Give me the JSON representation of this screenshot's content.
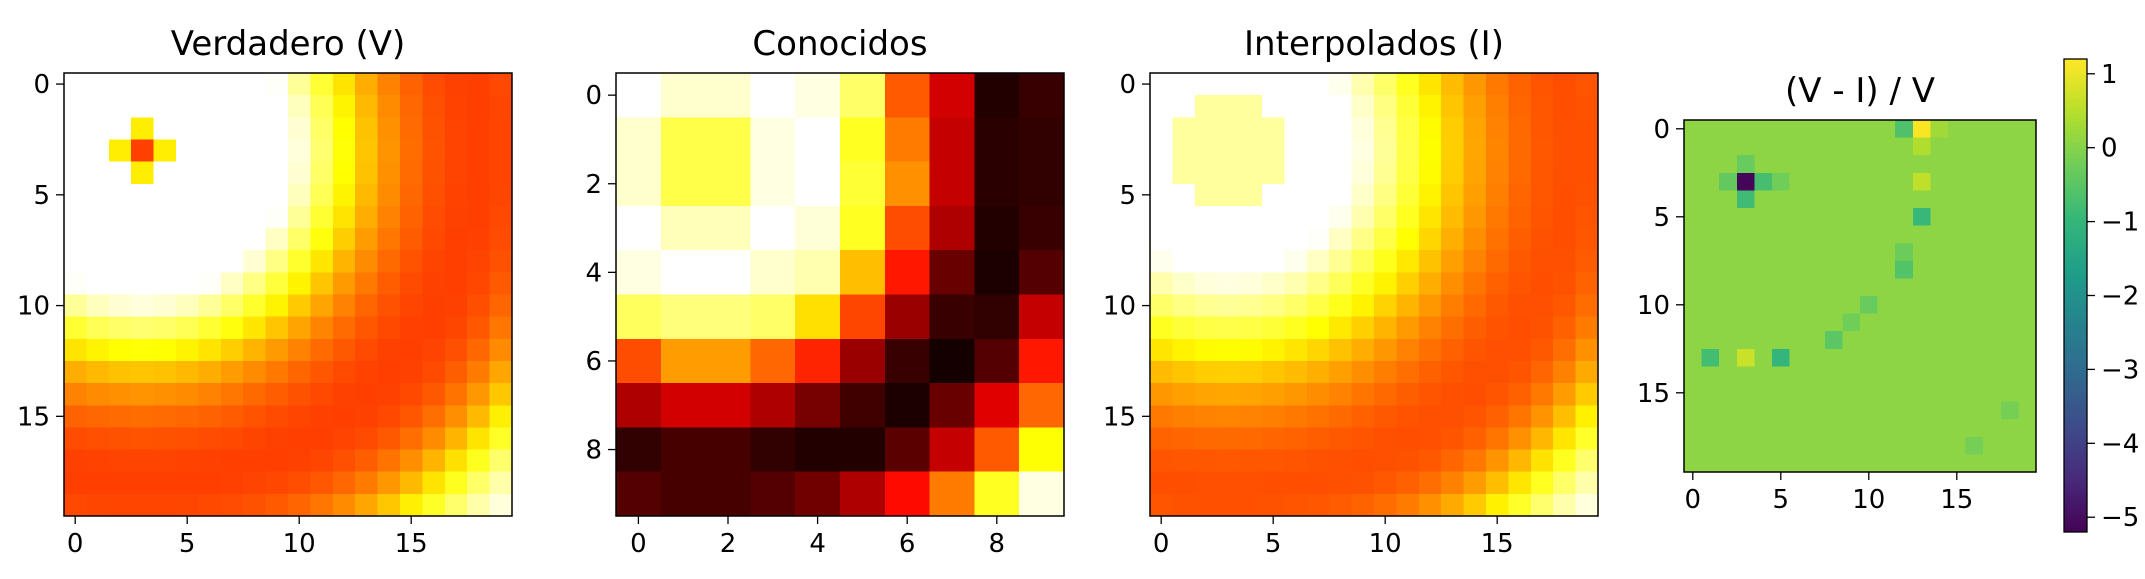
{
  "chart_data": [
    {
      "type": "heatmap",
      "title": "Verdadero (V)",
      "colormap": "hot",
      "rows": 20,
      "cols": 20,
      "value_range": [
        0,
        1
      ],
      "description_of_field": "radial bump peaking near row 3, col 3 with a ring that reaches the bottom-right corner",
      "xticks": [
        0,
        5,
        10,
        15
      ],
      "yticks": [
        0,
        5,
        10,
        15
      ],
      "peak": {
        "row": 3,
        "col": 3
      }
    },
    {
      "type": "heatmap",
      "title": "Conocidos",
      "colormap": "hot",
      "rows": 10,
      "cols": 10,
      "value_range": [
        0,
        1
      ],
      "values": [
        [
          1.0,
          0.95,
          0.95,
          1.0,
          0.97,
          0.85,
          0.5,
          0.3,
          0.05,
          0.08
        ],
        [
          0.95,
          0.82,
          0.82,
          0.97,
          1.0,
          0.78,
          0.55,
          0.28,
          0.06,
          0.07
        ],
        [
          0.95,
          0.82,
          0.82,
          0.97,
          1.0,
          0.8,
          0.58,
          0.28,
          0.06,
          0.07
        ],
        [
          1.0,
          0.93,
          0.93,
          1.0,
          0.96,
          0.78,
          0.48,
          0.25,
          0.05,
          0.08
        ],
        [
          0.97,
          1.0,
          1.0,
          0.95,
          0.92,
          0.65,
          0.4,
          0.15,
          0.04,
          0.12
        ],
        [
          0.84,
          0.87,
          0.87,
          0.85,
          0.7,
          0.47,
          0.22,
          0.08,
          0.07,
          0.28
        ],
        [
          0.48,
          0.6,
          0.6,
          0.52,
          0.42,
          0.22,
          0.08,
          0.03,
          0.12,
          0.4
        ],
        [
          0.25,
          0.3,
          0.3,
          0.25,
          0.17,
          0.09,
          0.04,
          0.15,
          0.32,
          0.52
        ],
        [
          0.07,
          0.1,
          0.1,
          0.07,
          0.05,
          0.05,
          0.13,
          0.28,
          0.5,
          0.75
        ],
        [
          0.12,
          0.1,
          0.1,
          0.12,
          0.16,
          0.25,
          0.38,
          0.55,
          0.78,
          0.97
        ]
      ],
      "xticks": [
        0,
        2,
        4,
        6,
        8
      ],
      "yticks": [
        0,
        2,
        4,
        6,
        8
      ]
    },
    {
      "type": "heatmap",
      "title": "Interpolados (I)",
      "colormap": "hot",
      "rows": 20,
      "cols": 20,
      "value_range": [
        0,
        1
      ],
      "description_of_field": "smooth interpolation of the known 10x10 grid; plateau near row 3, col 3",
      "xticks": [
        0,
        5,
        10,
        15
      ],
      "yticks": [
        0,
        5,
        10,
        15
      ],
      "peak": {
        "row": 3,
        "col": 3
      }
    },
    {
      "type": "heatmap",
      "title": "(V - I) / V",
      "colormap": "viridis",
      "rows": 20,
      "cols": 20,
      "value_range": [
        -5.2,
        1.2
      ],
      "background_value": 0.1,
      "outliers": [
        {
          "row": 3,
          "col": 3,
          "value": -5.1
        },
        {
          "row": 3,
          "col": 4,
          "value": -0.7
        },
        {
          "row": 4,
          "col": 3,
          "value": -0.8
        },
        {
          "row": 2,
          "col": 3,
          "value": -0.3
        },
        {
          "row": 3,
          "col": 2,
          "value": -0.35
        },
        {
          "row": 3,
          "col": 5,
          "value": -0.2
        },
        {
          "row": 0,
          "col": 13,
          "value": 1.15
        },
        {
          "row": 0,
          "col": 12,
          "value": -0.6
        },
        {
          "row": 0,
          "col": 14,
          "value": 0.3
        },
        {
          "row": 1,
          "col": 13,
          "value": 0.45
        },
        {
          "row": 3,
          "col": 13,
          "value": 0.6
        },
        {
          "row": 5,
          "col": 13,
          "value": -0.9
        },
        {
          "row": 7,
          "col": 12,
          "value": -0.25
        },
        {
          "row": 8,
          "col": 12,
          "value": -0.55
        },
        {
          "row": 10,
          "col": 10,
          "value": -0.3
        },
        {
          "row": 11,
          "col": 9,
          "value": -0.2
        },
        {
          "row": 12,
          "col": 8,
          "value": -0.45
        },
        {
          "row": 13,
          "col": 1,
          "value": -0.75
        },
        {
          "row": 13,
          "col": 3,
          "value": 0.7
        },
        {
          "row": 13,
          "col": 5,
          "value": -1.0
        },
        {
          "row": 16,
          "col": 18,
          "value": -0.15
        },
        {
          "row": 18,
          "col": 16,
          "value": -0.15
        }
      ],
      "xticks": [
        0,
        5,
        10,
        15
      ],
      "yticks": [
        0,
        5,
        10,
        15
      ],
      "colorbar": {
        "ticks": [
          1,
          0,
          -1,
          -2,
          -3,
          -4,
          -5
        ],
        "tick_labels": [
          "1",
          "0",
          "−1",
          "−2",
          "−3",
          "−4",
          "−5"
        ]
      }
    }
  ]
}
